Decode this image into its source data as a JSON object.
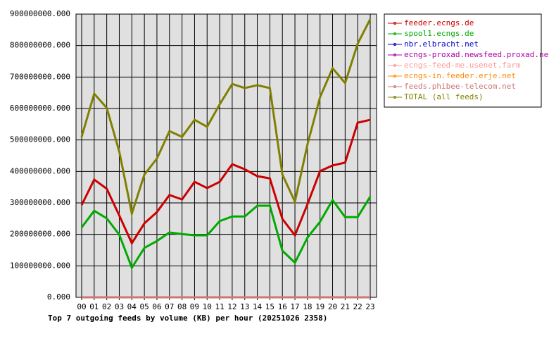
{
  "chart_data": {
    "type": "line",
    "title": "Top 7 outgoing feeds by volume (KB) per hour (20251026 2358)",
    "categories": [
      "00",
      "01",
      "02",
      "03",
      "04",
      "05",
      "06",
      "07",
      "08",
      "09",
      "10",
      "11",
      "12",
      "13",
      "14",
      "15",
      "16",
      "17",
      "18",
      "19",
      "20",
      "21",
      "22",
      "23"
    ],
    "ylim": [
      0,
      900000000
    ],
    "yticks": [
      {
        "value": 0,
        "label": "0.000"
      },
      {
        "value": 100000000,
        "label": "100000000.000"
      },
      {
        "value": 200000000,
        "label": "200000000.000"
      },
      {
        "value": 300000000,
        "label": "300000000.000"
      },
      {
        "value": 400000000,
        "label": "400000000.000"
      },
      {
        "value": 500000000,
        "label": "500000000.000"
      },
      {
        "value": 600000000,
        "label": "600000000.000"
      },
      {
        "value": 700000000,
        "label": "700000000.000"
      },
      {
        "value": 800000000,
        "label": "800000000.000"
      },
      {
        "value": 900000000,
        "label": "900000000.000"
      }
    ],
    "grid": true,
    "legend": "right",
    "series": [
      {
        "name": "feeder.ecngs.de",
        "color": "#cc0000",
        "values": [
          293000000,
          374000000,
          345000000,
          260000000,
          172000000,
          235000000,
          271000000,
          325000000,
          311000000,
          367000000,
          347000000,
          367000000,
          423000000,
          407000000,
          385000000,
          378000000,
          249000000,
          197000000,
          296000000,
          401000000,
          419000000,
          428000000,
          555000000,
          564000000
        ]
      },
      {
        "name": "spool1.ecngs.de",
        "color": "#00aa00",
        "values": [
          222000000,
          275000000,
          251000000,
          199000000,
          94000000,
          157000000,
          179000000,
          206000000,
          201000000,
          197000000,
          197000000,
          242000000,
          257000000,
          257000000,
          291000000,
          291000000,
          148000000,
          110000000,
          190000000,
          240000000,
          309000000,
          255000000,
          255000000,
          320000000
        ]
      },
      {
        "name": "nbr.elbracht.net",
        "color": "#0000cc",
        "values": [
          0,
          0,
          0,
          0,
          0,
          0,
          0,
          0,
          0,
          0,
          0,
          0,
          0,
          0,
          0,
          0,
          0,
          0,
          0,
          0,
          0,
          0,
          0,
          0
        ]
      },
      {
        "name": "ecngs-proxad.newsfeed.proxad.net",
        "color": "#aa00aa",
        "values": [
          0,
          0,
          0,
          0,
          0,
          0,
          0,
          0,
          0,
          0,
          0,
          0,
          0,
          0,
          0,
          0,
          0,
          0,
          0,
          0,
          0,
          0,
          0,
          0
        ]
      },
      {
        "name": "ecngs-feed-me.usenet.farm",
        "color": "#ff9999",
        "values": [
          0,
          0,
          0,
          0,
          0,
          0,
          0,
          0,
          0,
          0,
          0,
          0,
          0,
          0,
          0,
          0,
          0,
          0,
          0,
          0,
          0,
          0,
          0,
          0
        ]
      },
      {
        "name": "ecngs-in.feeder.erje.net",
        "color": "#ff8800",
        "values": [
          0,
          0,
          0,
          0,
          0,
          0,
          0,
          0,
          0,
          0,
          0,
          0,
          0,
          0,
          0,
          0,
          0,
          0,
          0,
          0,
          0,
          0,
          0,
          0
        ]
      },
      {
        "name": "feeds.phibee-telecom.net",
        "color": "#cc7777",
        "values": [
          0,
          0,
          0,
          0,
          0,
          0,
          0,
          0,
          0,
          0,
          0,
          0,
          0,
          0,
          0,
          0,
          0,
          0,
          0,
          0,
          0,
          0,
          0,
          0
        ]
      },
      {
        "name": "TOTAL (all feeds)",
        "color": "#808000",
        "values": [
          510000000,
          647000000,
          602000000,
          463000000,
          266000000,
          390000000,
          441000000,
          528000000,
          510000000,
          564000000,
          542000000,
          613000000,
          678000000,
          665000000,
          674000000,
          665000000,
          390000000,
          304000000,
          486000000,
          636000000,
          728000000,
          681000000,
          806000000,
          884000000
        ]
      }
    ]
  }
}
